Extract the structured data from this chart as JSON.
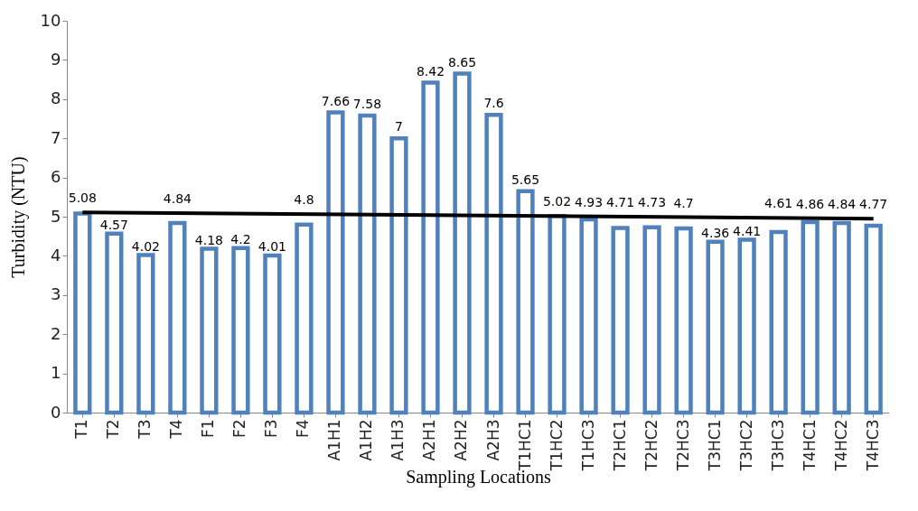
{
  "chart_data": {
    "type": "bar",
    "xlabel": "Sampling Locations",
    "ylabel": "Turbidity (NTU)",
    "categories": [
      "T1",
      "T2",
      "T3",
      "T4",
      "F1",
      "F2",
      "F3",
      "F4",
      "A1H1",
      "A1H2",
      "A1H3",
      "A2H1",
      "A2H2",
      "A2H3",
      "T1HC1",
      "T1HC2",
      "T1HC3",
      "T2HC1",
      "T2HC2",
      "T2HC3",
      "T3HC1",
      "T3HC2",
      "T3HC3",
      "T4HC1",
      "T4HC2",
      "T4HC3"
    ],
    "series": [
      {
        "color": "#4f81bd",
        "values": [
          5.08,
          4.57,
          4.02,
          4.84,
          4.18,
          4.2,
          4.01,
          4.8,
          7.66,
          7.58,
          7,
          8.42,
          8.65,
          7.6,
          5.65,
          5.02,
          4.93,
          4.71,
          4.73,
          4.7,
          4.36,
          4.41,
          4.61,
          4.86,
          4.84,
          4.77
        ],
        "value_labels": [
          "5.08",
          "4.57",
          "4.02",
          "4.84",
          "4.18",
          "4.2",
          "4.01",
          "4.8",
          "7.66",
          "7.58",
          "7",
          "8.42",
          "8.65",
          "7.6",
          "5.65",
          "5.02",
          "4.93",
          "4.71",
          "4.73",
          "4.7",
          "4.36",
          "4.41",
          "4.61",
          "4.86",
          "4.84",
          "4.77"
        ]
      },
      {
        "type": "line",
        "color": "#000000",
        "x": [
          "T1",
          "T4HC3"
        ],
        "values": [
          5.11,
          4.95
        ]
      }
    ],
    "ylim": [
      0,
      10
    ],
    "yticks": [
      0,
      1,
      2,
      3,
      4,
      5,
      6,
      7,
      8,
      9,
      10
    ],
    "grid": false
  }
}
